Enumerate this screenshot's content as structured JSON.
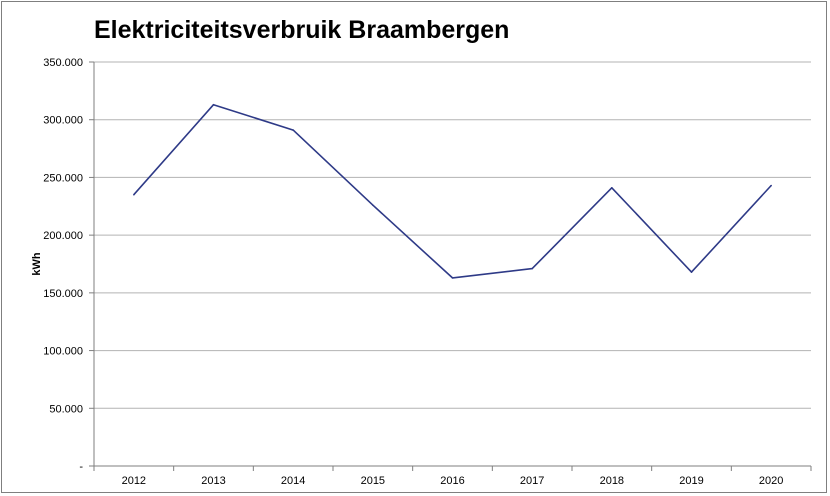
{
  "chart_data": {
    "type": "line",
    "title": "Elektriciteitsverbruik Braambergen",
    "xlabel": "",
    "ylabel": "kWh",
    "categories": [
      "2012",
      "2013",
      "2014",
      "2015",
      "2016",
      "2017",
      "2018",
      "2019",
      "2020"
    ],
    "series": [
      {
        "values": [
          235000,
          313000,
          291000,
          226000,
          163000,
          171000,
          241000,
          168000,
          243000
        ]
      }
    ],
    "ylim": [
      0,
      350000
    ],
    "yticks": [
      0,
      50000,
      100000,
      150000,
      200000,
      250000,
      300000,
      350000
    ],
    "ytick_labels": [
      "-",
      "50.000",
      "100.000",
      "150.000",
      "200.000",
      "250.000",
      "300.000",
      "350.000"
    ],
    "grid": true,
    "line_color": "#2e3a87",
    "grid_color": "#b3b3b3"
  }
}
